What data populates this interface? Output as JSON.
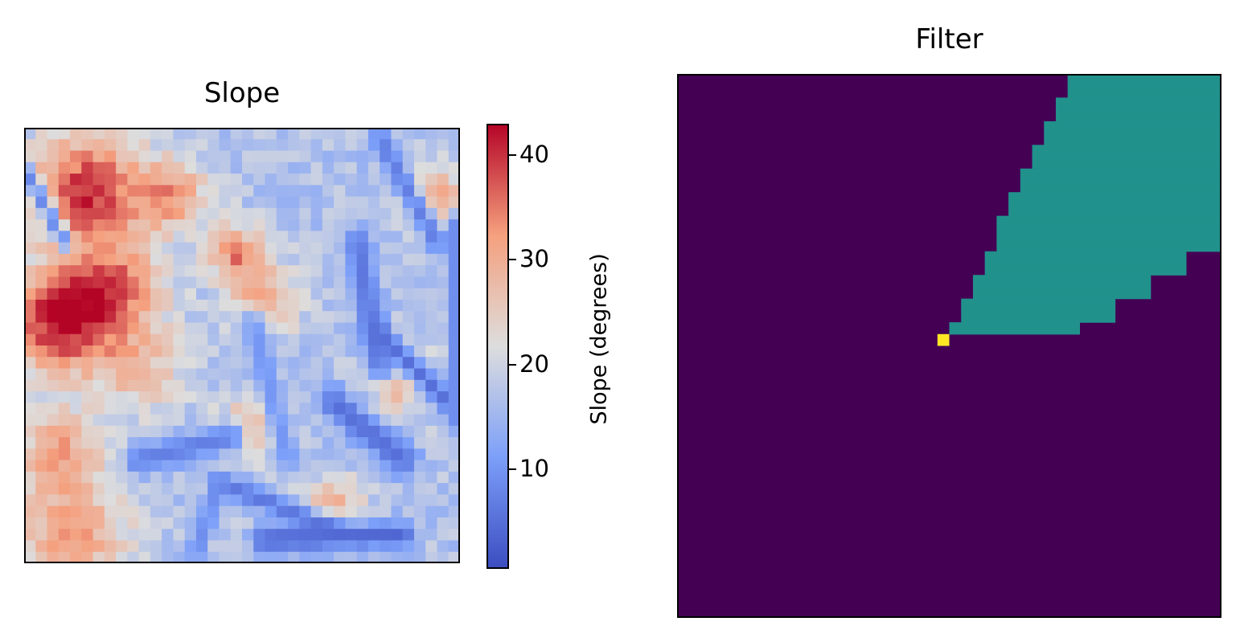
{
  "chart_data": [
    {
      "type": "heatmap",
      "title": "Slope",
      "xlabel": "",
      "ylabel": "",
      "grid_size": [
        38,
        38
      ],
      "colormap": "coolwarm",
      "colorbar": {
        "label": "Slope (degrees)",
        "range": [
          0.5,
          43
        ],
        "ticks": [
          10,
          20,
          30,
          40
        ],
        "placement": "right"
      },
      "axis_ticks_visible": false,
      "noise_seed": 7,
      "blobs": [
        {
          "cx": 5.5,
          "cy": 5.5,
          "r": 5,
          "v": 40
        },
        {
          "cx": 3,
          "cy": 17,
          "r": 4.5,
          "v": 42
        },
        {
          "cx": 8,
          "cy": 14,
          "r": 4,
          "v": 34
        },
        {
          "cx": 13,
          "cy": 6,
          "r": 3,
          "v": 31
        },
        {
          "cx": 18.5,
          "cy": 11,
          "r": 2.5,
          "v": 33
        },
        {
          "cx": 21,
          "cy": 15,
          "r": 3,
          "v": 30
        },
        {
          "cx": 3,
          "cy": 28,
          "r": 3.5,
          "v": 30
        },
        {
          "cx": 10,
          "cy": 21,
          "r": 4,
          "v": 27
        },
        {
          "cx": 20,
          "cy": 26,
          "r": 3,
          "v": 28
        },
        {
          "cx": 36,
          "cy": 6,
          "r": 2.5,
          "v": 31
        },
        {
          "cx": 33,
          "cy": 22,
          "r": 3,
          "v": 28
        },
        {
          "cx": 27,
          "cy": 33,
          "r": 2.5,
          "v": 29
        },
        {
          "cx": 4,
          "cy": 35.5,
          "r": 5,
          "v": 32
        },
        {
          "cx": 30,
          "cy": 14,
          "r": 3,
          "v": 18
        },
        {
          "cx": 23,
          "cy": 6,
          "r": 4,
          "v": 17
        }
      ],
      "low_lines": [
        {
          "x1": 31,
          "y1": 1,
          "x2": 36,
          "y2": 10,
          "w": 1.0,
          "v": 7
        },
        {
          "x1": 29,
          "y1": 10,
          "x2": 31,
          "y2": 21,
          "w": 1.2,
          "v": 6
        },
        {
          "x1": 31,
          "y1": 18,
          "x2": 37,
          "y2": 24,
          "w": 1.1,
          "v": 5
        },
        {
          "x1": 27,
          "y1": 24,
          "x2": 33,
          "y2": 29,
          "w": 1.4,
          "v": 5
        },
        {
          "x1": 10,
          "y1": 29,
          "x2": 18,
          "y2": 27,
          "w": 1.3,
          "v": 7
        },
        {
          "x1": 17,
          "y1": 31,
          "x2": 27,
          "y2": 35,
          "w": 1.0,
          "v": 6
        },
        {
          "x1": 21,
          "y1": 36,
          "x2": 33,
          "y2": 35.5,
          "w": 1.2,
          "v": 4
        },
        {
          "x1": 0.3,
          "y1": 4,
          "x2": 3.5,
          "y2": 10,
          "w": 0.7,
          "v": 8
        },
        {
          "x1": 37.5,
          "y1": 8,
          "x2": 37.5,
          "y2": 26,
          "w": 0.6,
          "v": 9
        },
        {
          "x1": 20,
          "y1": 17,
          "x2": 23,
          "y2": 29,
          "w": 1.1,
          "v": 10
        },
        {
          "x1": 17,
          "y1": 31,
          "x2": 15,
          "y2": 37,
          "w": 0.8,
          "v": 9
        }
      ]
    },
    {
      "type": "heatmap",
      "title": "Filter",
      "xlabel": "",
      "ylabel": "",
      "grid_size": [
        46,
        46
      ],
      "colormap": "viridis",
      "colors": {
        "background": "#440154",
        "region": "#21918c",
        "point": "#fde725"
      },
      "axis_ticks_visible": false,
      "point": {
        "col": 22,
        "row": 22
      },
      "region": {
        "row_start": 0,
        "col_end": 46,
        "col_starts": [
          33,
          33,
          32,
          32,
          31,
          31,
          30,
          30,
          29,
          29,
          28,
          28,
          27,
          27,
          27,
          26,
          26,
          25,
          25,
          24,
          24,
          23
        ],
        "right_col_ends": [
          46,
          46,
          46,
          46,
          46,
          46,
          46,
          46,
          46,
          46,
          46,
          46,
          46,
          46,
          46,
          43,
          43,
          40,
          40,
          37,
          37,
          34
        ]
      }
    }
  ]
}
